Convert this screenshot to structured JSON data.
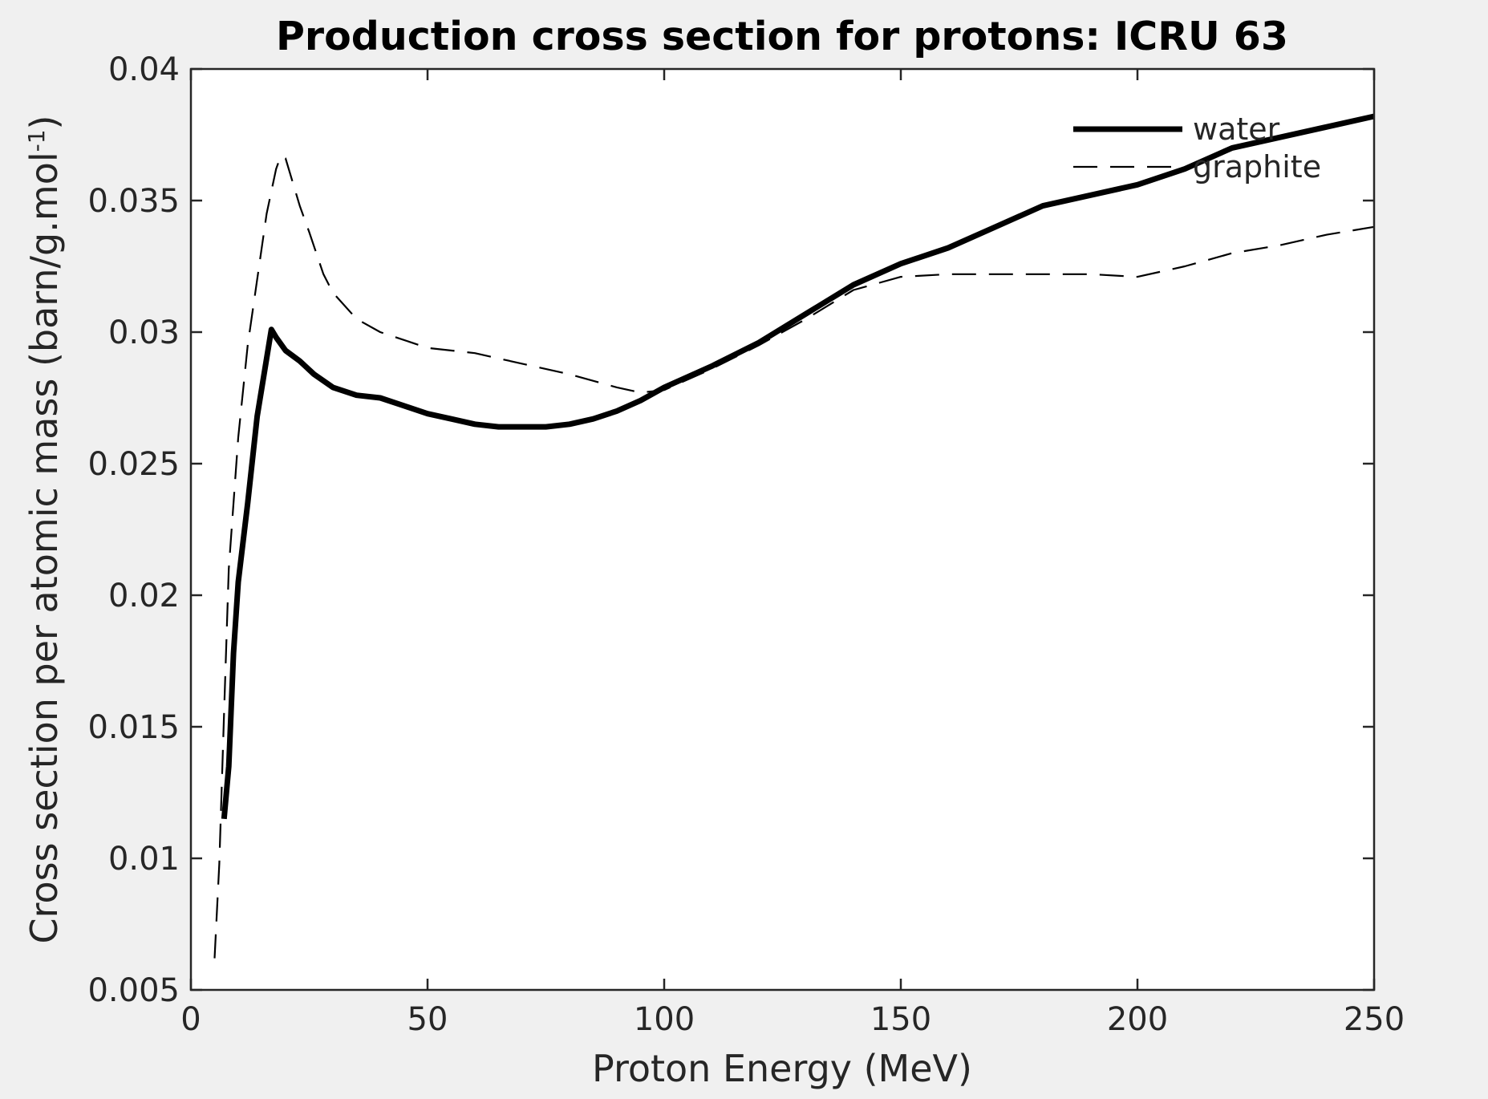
{
  "chart_data": {
    "type": "line",
    "title": "Production cross section for protons: ICRU 63",
    "xlabel": "Proton Energy (MeV)",
    "ylabel_main": "Cross section per atomic mass (barn/g.mol",
    "ylabel_sup": "-1",
    "ylabel_close": ")",
    "xlim": [
      0,
      250
    ],
    "ylim": [
      0.005,
      0.04
    ],
    "xticks": [
      0,
      50,
      100,
      150,
      200,
      250
    ],
    "xtick_labels": [
      "0",
      "50",
      "100",
      "150",
      "200",
      "250"
    ],
    "yticks": [
      0.005,
      0.01,
      0.015,
      0.02,
      0.025,
      0.03,
      0.035,
      0.04
    ],
    "ytick_labels": [
      "0.005",
      "0.01",
      "0.015",
      "0.02",
      "0.025",
      "0.03",
      "0.035",
      "0.04"
    ],
    "grid": false,
    "legend_position": "top-right",
    "series": [
      {
        "name": "water",
        "style": "solid-thick",
        "color": "#000000",
        "x": [
          7,
          8,
          9,
          10,
          12,
          14,
          16,
          17,
          18,
          20,
          23,
          26,
          30,
          35,
          40,
          45,
          50,
          55,
          60,
          65,
          70,
          75,
          80,
          85,
          90,
          95,
          100,
          110,
          120,
          130,
          140,
          150,
          160,
          170,
          180,
          190,
          200,
          210,
          220,
          230,
          240,
          250
        ],
        "y": [
          0.0115,
          0.0135,
          0.0178,
          0.0205,
          0.0235,
          0.0268,
          0.029,
          0.0301,
          0.0298,
          0.0293,
          0.0289,
          0.0284,
          0.0279,
          0.0276,
          0.0275,
          0.0272,
          0.0269,
          0.0267,
          0.0265,
          0.0264,
          0.0264,
          0.0264,
          0.0265,
          0.0267,
          0.027,
          0.0274,
          0.0279,
          0.0287,
          0.0296,
          0.0307,
          0.0318,
          0.0326,
          0.0332,
          0.034,
          0.0348,
          0.0352,
          0.0356,
          0.0362,
          0.037,
          0.0374,
          0.0378,
          0.0382
        ]
      },
      {
        "name": "graphite",
        "style": "dashed",
        "color": "#000000",
        "x": [
          5,
          6,
          7,
          8,
          10,
          12,
          14,
          16,
          18,
          19,
          20,
          21,
          23,
          25,
          28,
          30,
          35,
          40,
          45,
          50,
          60,
          70,
          80,
          90,
          95,
          100,
          110,
          120,
          130,
          140,
          150,
          160,
          170,
          180,
          190,
          200,
          210,
          220,
          230,
          240,
          250
        ],
        "y": [
          0.0062,
          0.0098,
          0.0155,
          0.021,
          0.026,
          0.0295,
          0.032,
          0.0345,
          0.0362,
          0.0367,
          0.0366,
          0.036,
          0.0348,
          0.0338,
          0.0322,
          0.0315,
          0.0305,
          0.03,
          0.0297,
          0.0294,
          0.0292,
          0.0288,
          0.0284,
          0.0279,
          0.0277,
          0.0278,
          0.0286,
          0.0295,
          0.0305,
          0.0316,
          0.0321,
          0.0322,
          0.0322,
          0.0322,
          0.0322,
          0.0321,
          0.0325,
          0.033,
          0.0333,
          0.0337,
          0.034
        ]
      }
    ]
  }
}
